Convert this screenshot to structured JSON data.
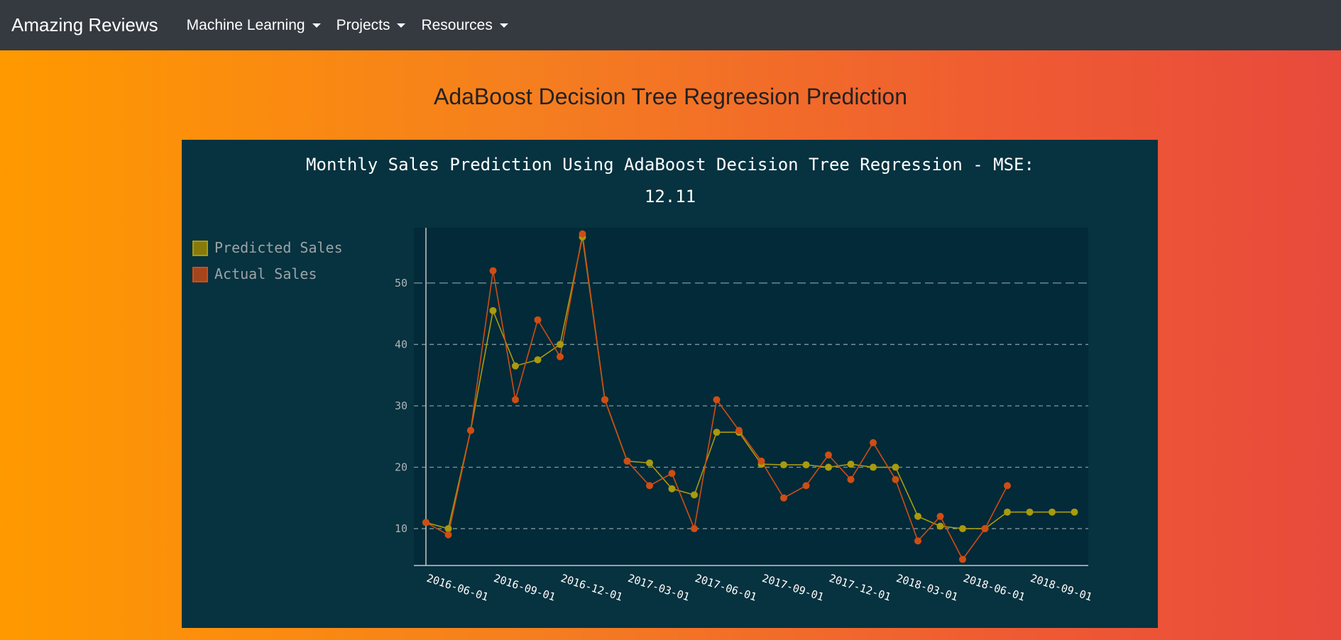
{
  "navbar": {
    "brand": "Amazing Reviews",
    "menu": [
      {
        "label": "Machine Learning"
      },
      {
        "label": "Projects"
      },
      {
        "label": "Resources"
      }
    ]
  },
  "page": {
    "heading": "AdaBoost Decision Tree Regreesion Prediction"
  },
  "colors": {
    "predicted": "#a99a0e",
    "actual": "#cf4d14",
    "background": "#07323f",
    "plot_background": "#022a38"
  },
  "chart_data": {
    "type": "line",
    "title_lines": [
      "Monthly Sales Prediction Using AdaBoost Decision Tree Regression - MSE:",
      "12.11"
    ],
    "x": [
      "2016-06-01",
      "2016-07-01",
      "2016-08-01",
      "2016-09-01",
      "2016-10-01",
      "2016-11-01",
      "2016-12-01",
      "2017-01-01",
      "2017-02-01",
      "2017-03-01",
      "2017-04-01",
      "2017-05-01",
      "2017-06-01",
      "2017-07-01",
      "2017-08-01",
      "2017-09-01",
      "2017-10-01",
      "2017-11-01",
      "2017-12-01",
      "2018-01-01",
      "2018-02-01",
      "2018-03-01",
      "2018-04-01",
      "2018-05-01",
      "2018-06-01",
      "2018-07-01",
      "2018-08-01",
      "2018-09-01",
      "2018-10-01",
      "2018-11-01"
    ],
    "x_ticks": [
      "2016-06-01",
      "2016-09-01",
      "2016-12-01",
      "2017-03-01",
      "2017-06-01",
      "2017-09-01",
      "2017-12-01",
      "2018-03-01",
      "2018-06-01",
      "2018-09-01"
    ],
    "y_ticks": [
      10,
      20,
      30,
      40,
      50
    ],
    "ylim": [
      4,
      59
    ],
    "grid": true,
    "legend_position": "top-left",
    "series": [
      {
        "name": "Predicted Sales",
        "values": [
          11,
          10,
          26,
          45.5,
          36.5,
          37.5,
          40,
          57.5,
          31,
          21,
          20.7,
          16.5,
          15.5,
          25.7,
          25.7,
          20.5,
          20.4,
          20.4,
          20,
          20.5,
          20,
          20,
          12,
          10.4,
          10,
          10,
          12.7,
          12.7,
          12.7,
          12.7
        ]
      },
      {
        "name": "Actual Sales",
        "values": [
          11,
          9,
          26,
          52,
          31,
          44,
          38,
          58,
          31,
          21,
          17,
          19,
          10,
          31,
          26,
          21,
          15,
          17,
          22,
          18,
          24,
          18,
          8,
          12,
          5,
          10,
          17,
          null,
          null,
          null
        ]
      }
    ]
  }
}
